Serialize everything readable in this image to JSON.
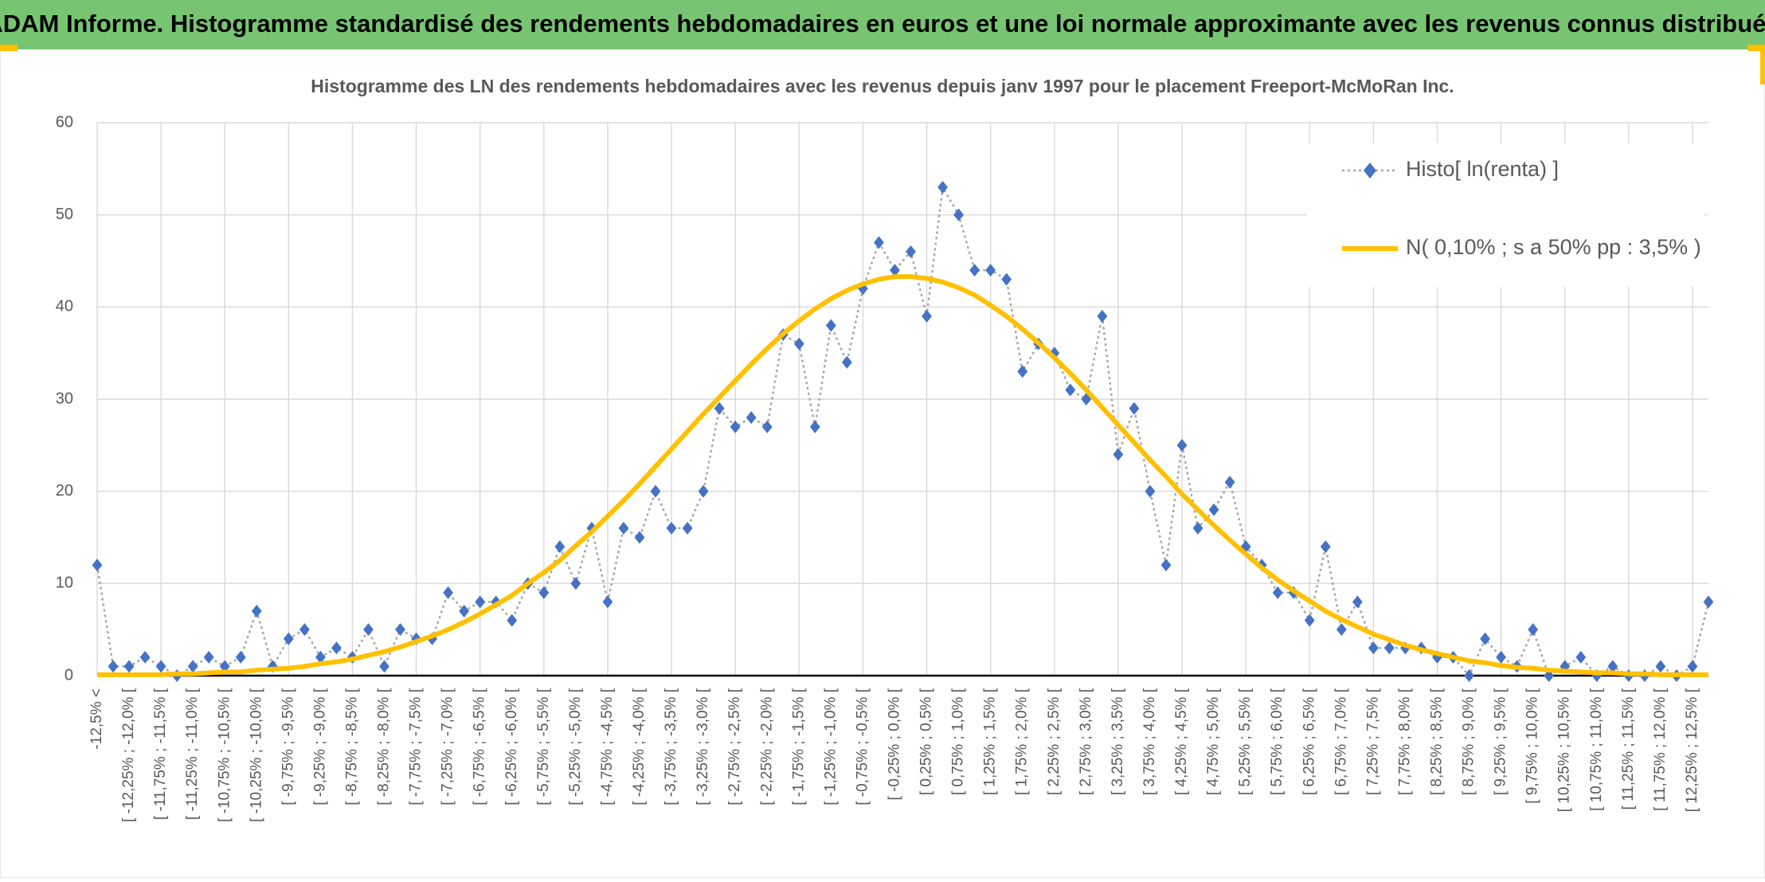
{
  "header": {
    "title": "ADAM Informe. Histogramme standardisé des rendements hebdomadaires en euros et une loi normale approximante avec les revenus connus distribués"
  },
  "chart_data": {
    "type": "line",
    "title": "Histogramme des LN des rendements hebdomadaires avec les revenus depuis janv 1997 pour le placement Freeport-McMoRan  Inc.",
    "categories": [
      "-12,5% <",
      null,
      "[ -12,25% ; -12,0% [",
      null,
      "[ -11,75% ; -11,5% [",
      null,
      "[ -11,25% ; -11,0% [",
      null,
      "[ -10,75% ; -10,5% [",
      null,
      "[ -10,25% ; -10,0% [",
      null,
      "[ -9,75% ; -9,5% [",
      null,
      "[ -9,25% ; -9,0% [",
      null,
      "[ -8,75% ; -8,5% [",
      null,
      "[ -8,25% ; -8,0% [",
      null,
      "[ -7,75% ; -7,5% [",
      null,
      "[ -7,25% ; -7,0% [",
      null,
      "[ -6,75% ; -6,5% [",
      null,
      "[ -6,25% ; -6,0% [",
      null,
      "[ -5,75% ; -5,5% [",
      null,
      "[ -5,25% ; -5,0% [",
      null,
      "[ -4,75% ; -4,5% [",
      null,
      "[ -4,25% ; -4,0% [",
      null,
      "[ -3,75% ; -3,5% [",
      null,
      "[ -3,25% ; -3,0% [",
      null,
      "[ -2,75% ; -2,5% [",
      null,
      "[ -2,25% ; -2,0% [",
      null,
      "[ -1,75% ; -1,5% [",
      null,
      "[ -1,25% ; -1,0% [",
      null,
      "[ -0,75% ; -0,5% [",
      null,
      "[ -0,25% ; 0,0% [",
      null,
      "[ 0,25% ; 0,5% [",
      null,
      "[ 0,75% ; 1,0% [",
      null,
      "[ 1,25% ; 1,5% [",
      null,
      "[ 1,75% ; 2,0% [",
      null,
      "[ 2,25% ; 2,5% [",
      null,
      "[ 2,75% ; 3,0% [",
      null,
      "[ 3,25% ; 3,5% [",
      null,
      "[ 3,75% ; 4,0% [",
      null,
      "[ 4,25% ; 4,5% [",
      null,
      "[ 4,75% ; 5,0% [",
      null,
      "[ 5,25% ; 5,5% [",
      null,
      "[ 5,75% ; 6,0% [",
      null,
      "[ 6,25% ; 6,5% [",
      null,
      "[ 6,75% ; 7,0% [",
      null,
      "[ 7,25% ; 7,5% [",
      null,
      "[ 7,75% ; 8,0% [",
      null,
      "[ 8,25% ; 8,5% [",
      null,
      "[ 8,75% ; 9,0% [",
      null,
      "[ 9,25% ; 9,5% [",
      null,
      "[ 9,75% ; 10,0% [",
      null,
      "[ 10,25% ; 10,5% [",
      null,
      "[ 10,75% ; 11,0% [",
      null,
      "[ 11,25% ; 11,5% [",
      null,
      "[ 11,75% ; 12,0% [",
      null,
      "[ 12,25% ; 12,5% [",
      null
    ],
    "series": [
      {
        "name": "Histo[ ln(renta) ]",
        "color": "#4472c4",
        "line_color": "#a6a6a6",
        "line_style": "dotted",
        "marker": "diamond",
        "values": [
          12,
          1,
          1,
          2,
          1,
          0,
          1,
          2,
          1,
          2,
          7,
          1,
          4,
          5,
          2,
          3,
          2,
          5,
          1,
          5,
          4,
          4,
          9,
          7,
          8,
          8,
          6,
          10,
          9,
          14,
          10,
          16,
          8,
          16,
          15,
          20,
          16,
          16,
          20,
          29,
          27,
          28,
          27,
          37,
          36,
          27,
          38,
          34,
          42,
          47,
          44,
          46,
          39,
          53,
          50,
          44,
          44,
          43,
          33,
          36,
          35,
          31,
          30,
          39,
          24,
          29,
          20,
          12,
          25,
          16,
          18,
          21,
          14,
          12,
          9,
          9,
          6,
          14,
          5,
          8,
          3,
          3,
          3,
          3,
          2,
          2,
          0,
          4,
          2,
          1,
          5,
          0,
          1,
          2,
          0,
          1,
          0,
          0,
          1,
          0,
          1,
          8
        ]
      },
      {
        "name": "N( 0,10% ; s a 50% pp : 3,5% )",
        "color": "#ffc000",
        "line_color": "#ffc000",
        "line_style": "solid",
        "marker": "none",
        "values": [
          0.1,
          0.1,
          0.1,
          0.1,
          0.1,
          0.2,
          0.2,
          0.3,
          0.4,
          0.4,
          0.6,
          0.7,
          0.8,
          1.0,
          1.3,
          1.5,
          1.8,
          2.2,
          2.6,
          3.1,
          3.7,
          4.3,
          5.0,
          5.8,
          6.7,
          7.7,
          8.7,
          10.0,
          11.2,
          12.5,
          14.1,
          15.6,
          17.3,
          19.0,
          20.8,
          22.7,
          24.6,
          26.5,
          28.4,
          30.2,
          32.0,
          33.8,
          35.5,
          37.1,
          38.5,
          39.8,
          40.9,
          41.8,
          42.5,
          43.0,
          43.3,
          43.3,
          43.1,
          42.7,
          42.1,
          41.3,
          40.2,
          39.0,
          37.6,
          36.1,
          34.5,
          32.8,
          31.0,
          29.1,
          27.2,
          25.3,
          23.4,
          21.6,
          19.7,
          18.0,
          16.3,
          14.7,
          13.2,
          11.7,
          10.4,
          9.2,
          8.1,
          7.0,
          6.1,
          5.3,
          4.5,
          3.9,
          3.3,
          2.8,
          2.4,
          2.0,
          1.6,
          1.4,
          1.1,
          0.9,
          0.8,
          0.6,
          0.5,
          0.4,
          0.3,
          0.3,
          0.2,
          0.2,
          0.1,
          0.1,
          0.1,
          0.1
        ]
      }
    ],
    "ylim": [
      0,
      60
    ],
    "yticks": [
      0,
      10,
      20,
      30,
      40,
      50,
      60
    ],
    "grid": true,
    "legend": "upper right"
  }
}
